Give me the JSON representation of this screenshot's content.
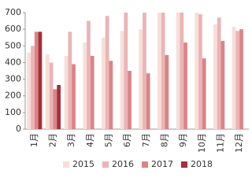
{
  "chart_data": {
    "type": "bar",
    "categories": [
      "1月",
      "2月",
      "3月",
      "4月",
      "5月",
      "6月",
      "7月",
      "8月",
      "9月",
      "10月",
      "11月",
      "12月"
    ],
    "series": [
      {
        "name": "2015",
        "color": "#f6dfd8",
        "values": [
          460,
          450,
          440,
          520,
          550,
          590,
          600,
          700,
          700,
          700,
          630,
          615
        ]
      },
      {
        "name": "2016",
        "color": "#ebb4b6",
        "values": [
          500,
          400,
          585,
          650,
          680,
          700,
          700,
          700,
          700,
          690,
          670,
          590
        ]
      },
      {
        "name": "2017",
        "color": "#da8486",
        "values": [
          585,
          240,
          390,
          440,
          410,
          350,
          335,
          445,
          520,
          425,
          530,
          600
        ]
      },
      {
        "name": "2018",
        "color": "#a3303a",
        "values": [
          585,
          265,
          null,
          null,
          null,
          null,
          null,
          null,
          null,
          null,
          null,
          null
        ]
      }
    ],
    "ylim": [
      0,
      700
    ],
    "yticks": [
      0,
      100,
      200,
      300,
      400,
      500,
      600,
      700
    ],
    "grid": false,
    "legend": "bottom"
  }
}
